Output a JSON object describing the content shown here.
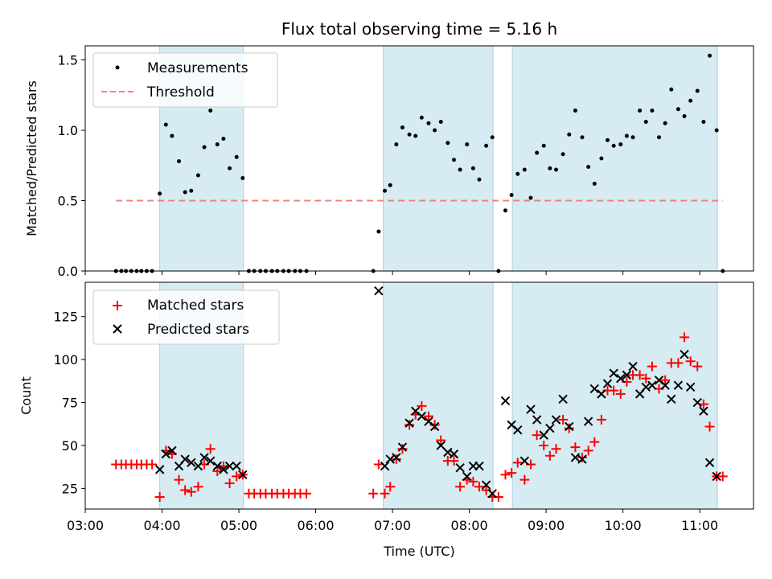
{
  "chart_data": [
    {
      "type": "scatter",
      "title": "Flux total observing time = 5.16 h",
      "xlabel": "",
      "ylabel": "Matched/Predicted stars",
      "xlim": [
        3.0,
        11.7
      ],
      "ylim": [
        0.0,
        1.6
      ],
      "yticks": [
        0.0,
        0.5,
        1.0,
        1.5
      ],
      "ytick_labels": [
        "0.0",
        "0.5",
        "1.0",
        "1.5"
      ],
      "legend": {
        "placement": "top-left",
        "entries": [
          "Measurements",
          "Threshold"
        ]
      },
      "shaded_intervals": [
        [
          3.97,
          5.06
        ],
        [
          6.88,
          8.31
        ],
        [
          8.56,
          11.23
        ]
      ],
      "series": [
        {
          "name": "Measurements",
          "marker": "dot",
          "color": "#000000",
          "x": [
            3.4,
            3.47,
            3.53,
            3.6,
            3.67,
            3.73,
            3.8,
            3.87,
            3.97,
            4.05,
            4.13,
            4.22,
            4.3,
            4.38,
            4.47,
            4.55,
            4.63,
            4.72,
            4.8,
            4.88,
            4.97,
            5.05,
            5.13,
            5.2,
            5.28,
            5.35,
            5.43,
            5.5,
            5.58,
            5.65,
            5.73,
            5.8,
            5.88,
            6.75,
            6.82,
            6.9,
            6.97,
            7.05,
            7.13,
            7.22,
            7.3,
            7.38,
            7.47,
            7.55,
            7.63,
            7.72,
            7.8,
            7.88,
            7.97,
            8.05,
            8.13,
            8.22,
            8.3,
            8.38,
            8.47,
            8.55,
            8.63,
            8.72,
            8.8,
            8.88,
            8.97,
            9.05,
            9.13,
            9.22,
            9.3,
            9.38,
            9.47,
            9.55,
            9.63,
            9.72,
            9.8,
            9.88,
            9.97,
            10.05,
            10.13,
            10.22,
            10.3,
            10.38,
            10.47,
            10.55,
            10.63,
            10.72,
            10.8,
            10.88,
            10.97,
            11.05,
            11.13,
            11.22,
            11.3
          ],
          "y": [
            0,
            0,
            0,
            0,
            0,
            0,
            0,
            0,
            0.55,
            1.04,
            0.96,
            0.78,
            0.56,
            0.57,
            0.68,
            0.88,
            1.14,
            0.9,
            0.94,
            0.73,
            0.81,
            0.66,
            0,
            0,
            0,
            0,
            0,
            0,
            0,
            0,
            0,
            0,
            0,
            0,
            0.28,
            0.57,
            0.61,
            0.9,
            1.02,
            0.97,
            0.96,
            1.09,
            1.05,
            1.0,
            1.06,
            0.91,
            0.79,
            0.72,
            0.9,
            0.73,
            0.65,
            0.89,
            0.95,
            0,
            0.43,
            0.54,
            0.69,
            0.72,
            0.52,
            0.84,
            0.89,
            0.73,
            0.72,
            0.83,
            0.97,
            1.14,
            0.95,
            0.74,
            0.62,
            0.8,
            0.93,
            0.89,
            0.9,
            0.96,
            0.95,
            1.14,
            1.06,
            1.14,
            0.95,
            1.05,
            1.29,
            1.15,
            1.1,
            1.21,
            1.28,
            1.06,
            1.53,
            1.0,
            0
          ]
        },
        {
          "name": "Threshold",
          "marker": "dashed-line",
          "color": "#f08080",
          "x": [
            3.4,
            11.3
          ],
          "y": [
            0.5,
            0.5
          ]
        }
      ]
    },
    {
      "type": "scatter",
      "title": "",
      "xlabel": "Time (UTC)",
      "ylabel": "Count",
      "xlim": [
        3.0,
        11.7
      ],
      "ylim": [
        13,
        145
      ],
      "xticks": [
        3,
        4,
        5,
        6,
        7,
        8,
        9,
        10,
        11
      ],
      "xtick_labels": [
        "03:00",
        "04:00",
        "05:00",
        "06:00",
        "07:00",
        "08:00",
        "09:00",
        "10:00",
        "11:00"
      ],
      "yticks": [
        25,
        50,
        75,
        100,
        125
      ],
      "ytick_labels": [
        "25",
        "50",
        "75",
        "100",
        "125"
      ],
      "legend": {
        "placement": "top-left",
        "entries": [
          "Matched stars",
          "Predicted stars"
        ]
      },
      "shaded_intervals": [
        [
          3.97,
          5.06
        ],
        [
          6.88,
          8.31
        ],
        [
          8.56,
          11.23
        ]
      ],
      "series": [
        {
          "name": "Matched stars",
          "marker": "plus",
          "color": "#ff0000",
          "x": [
            3.4,
            3.47,
            3.53,
            3.6,
            3.67,
            3.73,
            3.8,
            3.87,
            3.97,
            4.05,
            4.13,
            4.22,
            4.3,
            4.38,
            4.47,
            4.55,
            4.63,
            4.72,
            4.8,
            4.88,
            4.97,
            5.05,
            5.13,
            5.2,
            5.28,
            5.35,
            5.43,
            5.5,
            5.58,
            5.65,
            5.73,
            5.8,
            5.88,
            6.75,
            6.82,
            6.9,
            6.97,
            7.05,
            7.13,
            7.22,
            7.3,
            7.38,
            7.47,
            7.55,
            7.63,
            7.72,
            7.8,
            7.88,
            7.97,
            8.05,
            8.13,
            8.22,
            8.3,
            8.38,
            8.47,
            8.55,
            8.63,
            8.72,
            8.8,
            8.88,
            8.97,
            9.05,
            9.13,
            9.22,
            9.3,
            9.38,
            9.47,
            9.55,
            9.63,
            9.72,
            9.8,
            9.88,
            9.97,
            10.05,
            10.13,
            10.22,
            10.3,
            10.38,
            10.47,
            10.55,
            10.63,
            10.72,
            10.8,
            10.88,
            10.97,
            11.05,
            11.13,
            11.22,
            11.3
          ],
          "y": [
            39,
            39,
            39,
            39,
            39,
            39,
            39,
            39,
            20,
            47,
            45,
            30,
            24,
            23,
            26,
            39,
            48,
            35,
            38,
            28,
            32,
            33,
            22,
            22,
            22,
            22,
            22,
            22,
            22,
            22,
            22,
            22,
            22,
            22,
            39,
            22,
            26,
            42,
            48,
            62,
            68,
            73,
            67,
            62,
            53,
            41,
            41,
            26,
            30,
            29,
            26,
            24,
            20,
            20,
            33,
            34,
            40,
            30,
            39,
            56,
            50,
            44,
            48,
            65,
            60,
            49,
            43,
            47,
            52,
            65,
            82,
            82,
            80,
            87,
            91,
            91,
            89,
            96,
            83,
            88,
            98,
            98,
            113,
            99,
            96,
            74,
            61,
            32,
            32
          ]
        },
        {
          "name": "Predicted stars",
          "marker": "x",
          "color": "#000000",
          "x": [
            3.97,
            4.05,
            4.13,
            4.22,
            4.3,
            4.38,
            4.47,
            4.55,
            4.63,
            4.72,
            4.8,
            4.88,
            4.97,
            5.05,
            6.82,
            6.9,
            6.97,
            7.05,
            7.13,
            7.22,
            7.3,
            7.38,
            7.47,
            7.55,
            7.63,
            7.72,
            7.8,
            7.88,
            7.97,
            8.05,
            8.13,
            8.22,
            8.3,
            8.47,
            8.55,
            8.63,
            8.72,
            8.8,
            8.88,
            8.97,
            9.05,
            9.13,
            9.22,
            9.3,
            9.38,
            9.47,
            9.55,
            9.63,
            9.72,
            9.8,
            9.88,
            9.97,
            10.05,
            10.13,
            10.22,
            10.3,
            10.38,
            10.47,
            10.55,
            10.63,
            10.72,
            10.8,
            10.88,
            10.97,
            11.05,
            11.13,
            11.22
          ],
          "y": [
            36,
            45,
            47,
            38,
            42,
            40,
            38,
            43,
            41,
            38,
            36,
            38,
            38,
            33,
            140,
            38,
            42,
            43,
            49,
            63,
            70,
            67,
            64,
            61,
            50,
            46,
            45,
            37,
            32,
            38,
            38,
            27,
            22,
            76,
            62,
            59,
            41,
            71,
            65,
            56,
            60,
            65,
            77,
            61,
            43,
            42,
            64,
            83,
            80,
            86,
            92,
            89,
            91,
            96,
            80,
            84,
            85,
            88,
            85,
            77,
            85,
            103,
            84,
            75,
            70,
            40,
            32
          ]
        }
      ]
    }
  ]
}
